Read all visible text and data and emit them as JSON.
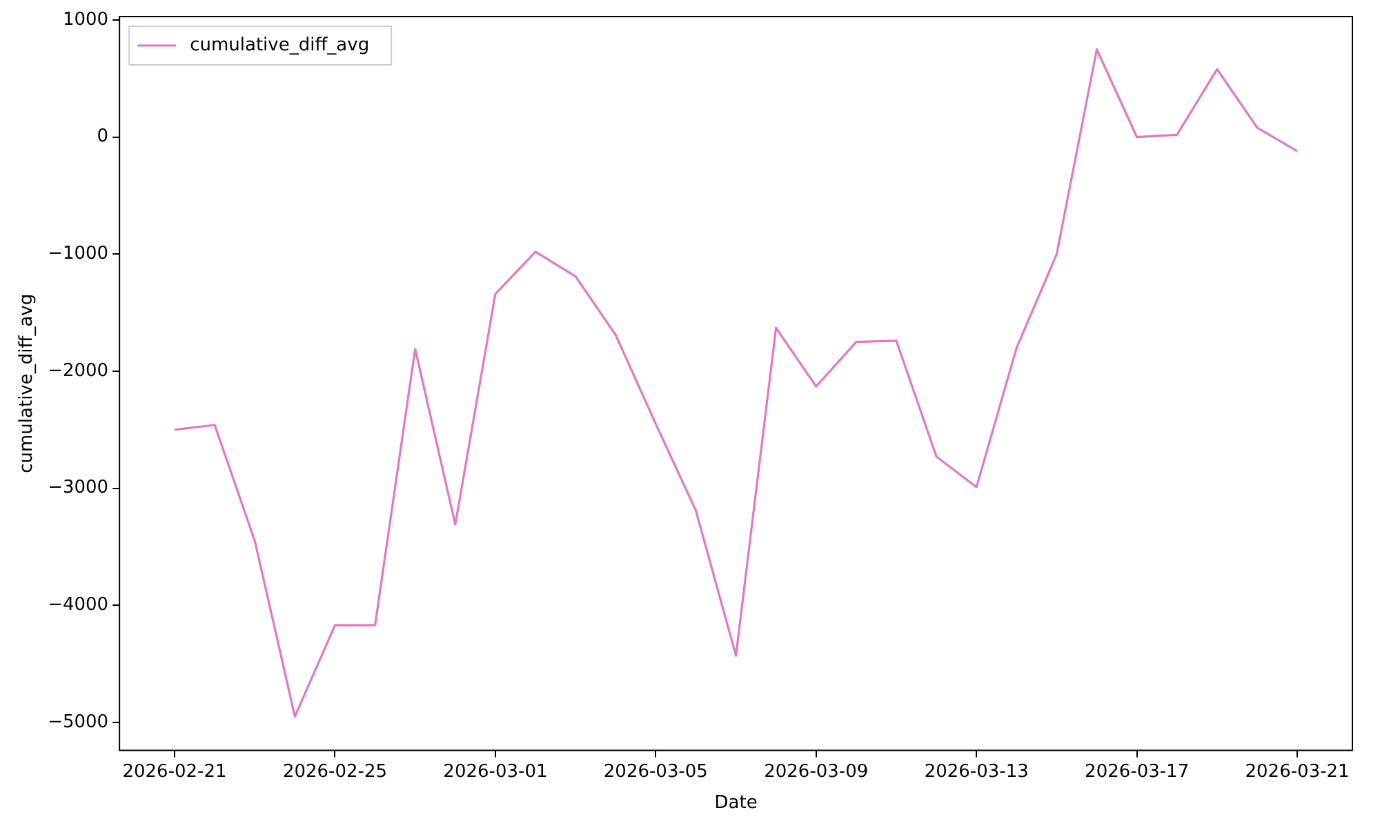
{
  "chart_data": {
    "type": "line",
    "xlabel": "Date",
    "ylabel": "cumulative_diff_avg",
    "legend": "top left",
    "grid": false,
    "x": [
      "2026-02-21",
      "2026-02-22",
      "2026-02-23",
      "2026-02-24",
      "2026-02-25",
      "2026-02-26",
      "2026-02-27",
      "2026-02-28",
      "2026-03-01",
      "2026-03-02",
      "2026-03-03",
      "2026-03-04",
      "2026-03-05",
      "2026-03-06",
      "2026-03-07",
      "2026-03-08",
      "2026-03-09",
      "2026-03-10",
      "2026-03-11",
      "2026-03-12",
      "2026-03-13",
      "2026-03-14",
      "2026-03-15",
      "2026-03-16",
      "2026-03-17",
      "2026-03-18",
      "2026-03-19",
      "2026-03-20",
      "2026-03-21"
    ],
    "series": [
      {
        "name": "cumulative_diff_avg",
        "color": "#e377c2",
        "values": [
          -2500,
          -2460,
          -3450,
          -4950,
          -4170,
          -4170,
          -1810,
          -3310,
          -1340,
          -980,
          -1190,
          -1690,
          -2450,
          -3190,
          -4430,
          -1630,
          -2130,
          -1750,
          -1740,
          -2730,
          -2990,
          -1800,
          -1000,
          750,
          0,
          20,
          580,
          80,
          -120
        ]
      }
    ],
    "xlim": [
      "2026-02-19T15:00",
      "2026-03-22T09:00"
    ],
    "xticks": [
      "2026-02-21",
      "2026-02-25",
      "2026-03-01",
      "2026-03-05",
      "2026-03-09",
      "2026-03-13",
      "2026-03-17",
      "2026-03-21"
    ],
    "ylim": [
      -5240,
      1030
    ],
    "yticks": [
      -5000,
      -4000,
      -3000,
      -2000,
      -1000,
      0,
      1000
    ]
  }
}
